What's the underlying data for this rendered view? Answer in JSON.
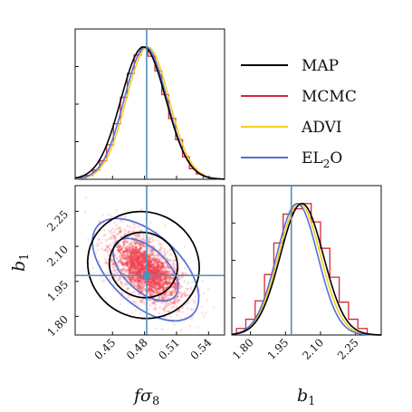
{
  "chart_data": {
    "type": "corner",
    "parameters": [
      "fσ8",
      "b1"
    ],
    "axis_labels": {
      "x_left": "fσ",
      "x_left_sub": "8",
      "x_right": "b",
      "x_right_sub": "1",
      "y_lower": "b",
      "y_lower_sub": "1"
    },
    "fs8_ticks": [
      "0.45",
      "0.48",
      "0.51",
      "0.54"
    ],
    "fs8_tick_values": [
      0.45,
      0.48,
      0.51,
      0.54
    ],
    "b1_ticks": [
      "1.80",
      "1.95",
      "2.10",
      "2.25"
    ],
    "b1_tick_values": [
      1.8,
      1.95,
      2.1,
      2.25
    ],
    "fs8_range": [
      0.415,
      0.555
    ],
    "b1_range": [
      1.72,
      2.36
    ],
    "truth": {
      "fs8": 0.482,
      "b1": 1.975
    },
    "legend": [
      {
        "label": "MAP",
        "color": "#000000"
      },
      {
        "label": "MCMC",
        "color": "#d62739"
      },
      {
        "label": "ADVI",
        "color": "#f5cf1f"
      },
      {
        "label": "EL",
        "sub": "2",
        "tail": "O",
        "color": "#5470d6"
      }
    ],
    "series": [
      {
        "name": "MAP",
        "fs8_mean": 0.479,
        "fs8_sd": 0.021,
        "b1_mean": 2.02,
        "b1_sd": 0.092,
        "corr": -0.05
      },
      {
        "name": "MCMC",
        "fs8_mean": 0.481,
        "fs8_sd": 0.019,
        "b1_mean": 2.0,
        "b1_sd": 0.085,
        "corr": -0.55
      },
      {
        "name": "ADVI",
        "fs8_mean": 0.483,
        "fs8_sd": 0.02,
        "b1_mean": 2.01,
        "b1_sd": 0.09
      },
      {
        "name": "EL2O",
        "fs8_mean": 0.481,
        "fs8_sd": 0.02,
        "b1_mean": 2.0,
        "b1_sd": 0.088,
        "corr": -0.55
      }
    ],
    "mcmc_fs8_hist": [
      0.03,
      0.07,
      0.14,
      0.26,
      0.42,
      0.62,
      0.8,
      0.94,
      1.0,
      0.93,
      0.82,
      0.64,
      0.46,
      0.3,
      0.17,
      0.08,
      0.04
    ],
    "mcmc_b1_hist": [
      0.05,
      0.12,
      0.26,
      0.46,
      0.7,
      0.92,
      0.96,
      1.0,
      0.86,
      0.66,
      0.44,
      0.25,
      0.12,
      0.05
    ]
  }
}
